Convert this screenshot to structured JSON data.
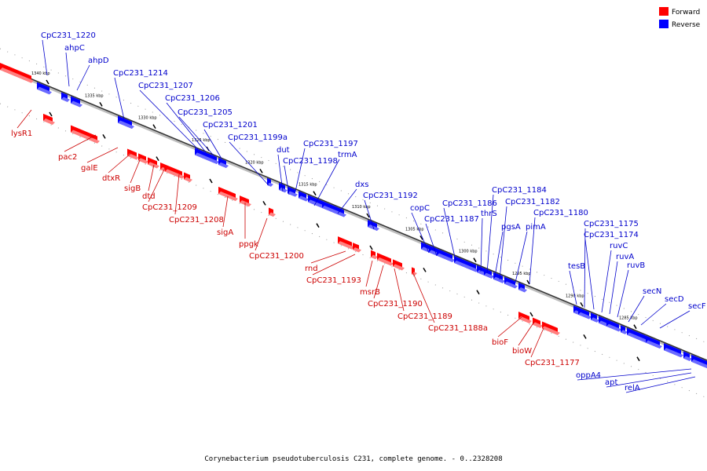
{
  "caption": "Corynebacterium pseudotuberculosis C231, complete genome. - 0..2328208",
  "legend": [
    {
      "label": "Forward",
      "color": "#ff0000"
    },
    {
      "label": "Reverse",
      "color": "#0000ff"
    }
  ],
  "ticks": [
    "1340 kbp",
    "1335 kbp",
    "1330 kbp",
    "1325 kbp",
    "1320 kbp",
    "1315 kbp",
    "1310 kbp",
    "1305 kbp",
    "1300 kbp",
    "1295 kbp",
    "1290 kbp",
    "1285 kbp"
  ],
  "reverse_labels": [
    "CpC231_1220",
    "ahpC",
    "ahpD",
    "CpC231_1214",
    "CpC231_1207",
    "CpC231_1206",
    "CpC231_1205",
    "CpC231_1201",
    "CpC231_1199a",
    "dut",
    "CpC231_1198",
    "CpC231_1197",
    "trmA",
    "dxs",
    "CpC231_1192",
    "copC",
    "CpC231_1187",
    "CpC231_1186",
    "thrS",
    "CpC231_1184",
    "pgsA",
    "CpC231_1182",
    "pimA",
    "CpC231_1180",
    "tesB",
    "CpC231_1175",
    "CpC231_1174",
    "ruvC",
    "ruvA",
    "ruvB",
    "secN",
    "secD",
    "secF",
    "oppA4",
    "apt",
    "relA"
  ],
  "forward_labels": [
    "lysR1",
    "pac2",
    "galE",
    "dtxR",
    "sigB",
    "dtd",
    "CpC231_1209",
    "CpC231_1208",
    "sigA",
    "ppgk",
    "CpC231_1200",
    "rnd",
    "CpC231_1193",
    "msrB",
    "CpC231_1190",
    "CpC231_1189",
    "CpC231_1188a",
    "bioF",
    "bioW",
    "CpC231_1177"
  ]
}
